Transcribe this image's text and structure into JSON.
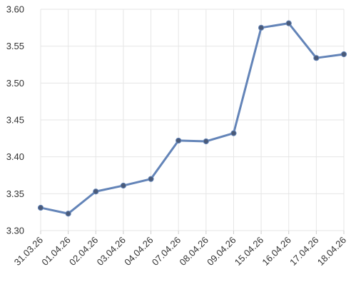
{
  "chart_data": {
    "type": "line",
    "title": "",
    "xlabel": "",
    "ylabel": "",
    "categories": [
      "31.03.26",
      "01.04.26",
      "02.04.26",
      "03.04.26",
      "04.04.26",
      "07.04.26",
      "08.04.26",
      "09.04.26",
      "15.04.26",
      "16.04.26",
      "17.04.26",
      "18.04.26"
    ],
    "series": [
      {
        "values": [
          3.331,
          3.323,
          3.353,
          3.361,
          3.37,
          3.422,
          3.421,
          3.432,
          3.575,
          3.581,
          3.534,
          3.539
        ]
      }
    ],
    "ylim": [
      3.3,
      3.6
    ],
    "yticks": [
      "3.30",
      "3.35",
      "3.40",
      "3.45",
      "3.50",
      "3.55",
      "3.60"
    ],
    "grid": true,
    "legend": "none",
    "colors": {
      "line": "#6384b8",
      "marker": "#4a5a78",
      "grid": "#e6e6e6",
      "text": "#333333"
    }
  }
}
